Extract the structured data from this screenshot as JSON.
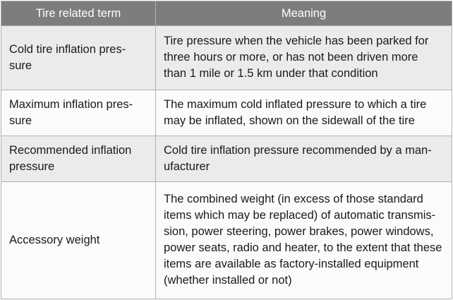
{
  "table": {
    "headers": {
      "term": "Tire related term",
      "meaning": "Meaning"
    },
    "rows": [
      {
        "term": [
          "Cold tire inflation pres-",
          "sure"
        ],
        "meaning": [
          "Tire pressure when the vehicle has been parked for",
          "three hours or more, or has not been driven more",
          "than 1 mile or 1.5 km under that condition"
        ]
      },
      {
        "term": [
          "Maximum inflation pres-",
          "sure"
        ],
        "meaning": [
          "The maximum cold inflated pressure to which a tire",
          "may be inflated, shown on the sidewall of the tire"
        ]
      },
      {
        "term": [
          "Recommended inflation",
          "pressure"
        ],
        "meaning": [
          "Cold tire inflation pressure recommended by a man-",
          "ufacturer"
        ]
      },
      {
        "term": [
          "Accessory weight"
        ],
        "meaning": [
          "The combined weight (in excess of those standard",
          "items which may be replaced) of automatic transmis-",
          "sion, power steering, power brakes, power windows,",
          "power seats, radio and heater, to the extent that these",
          "items are available as factory-installed equipment",
          "(whether installed or not)"
        ]
      }
    ]
  }
}
